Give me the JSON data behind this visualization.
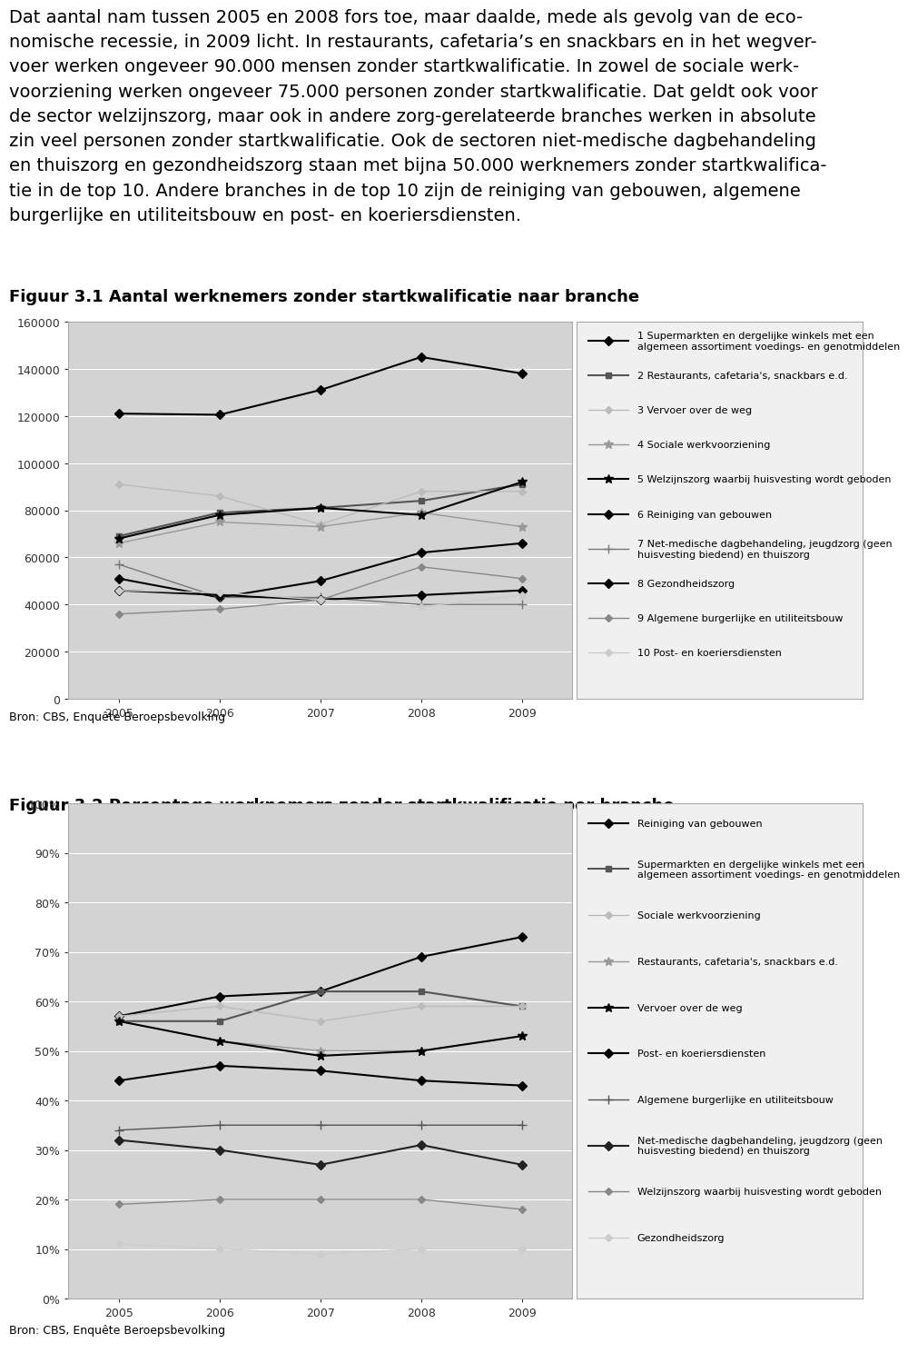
{
  "text_lines": [
    "Dat aantal nam tussen 2005 en 2008 fors toe, maar daalde, mede als gevolg van de eco-",
    "nomische recessie, in 2009 licht. In restaurants, cafetaria’s en snackbars en in het wegver-",
    "voer werken ongeveer 90.000 mensen zonder startkwalificatie. In zowel de sociale werk-",
    "voorziening werken ongeveer 75.000 personen zonder startkwalificatie. Dat geldt ook voor",
    "de sector welzijnszorg, maar ook in andere zorg-gerelateerde branches werken in absolute",
    "zin veel personen zonder startkwalificatie. Ook de sectoren niet-medische dagbehandeling",
    "en thuiszorg en gezondheidszorg staan met bijna 50.000 werknemers zonder startkwalifica-",
    "tie in de top 10. Andere branches in de top 10 zijn de reiniging van gebouwen, algemene",
    "burgerlijke en utiliteitsbouw en post- en koeriersdiensten."
  ],
  "fig1_title": "Figuur 3.1 Aantal werknemers zonder startkwalificatie naar branche",
  "fig2_title": "Figuur 3.2 Percentage werknemers zonder startkwalificatie per branche",
  "source_text": "Bron: CBS, Enquête Beroepsbevolking",
  "years": [
    2005,
    2006,
    2007,
    2008,
    2009
  ],
  "fig1_series": [
    {
      "label": "1 Supermarkten en dergelijke winkels met een\nalgemeen assortiment voedings- en genotmiddelen",
      "color": "#000000",
      "marker": "D",
      "marker_size": 5,
      "linestyle": "-",
      "linewidth": 1.5,
      "values": [
        121000,
        120500,
        131000,
        145000,
        138000
      ]
    },
    {
      "label": "2 Restaurants, cafetaria's, snackbars e.d.",
      "color": "#555555",
      "marker": "s",
      "marker_size": 5,
      "linestyle": "-",
      "linewidth": 1.5,
      "values": [
        69000,
        79000,
        81000,
        84000,
        91000
      ]
    },
    {
      "label": "3 Vervoer over de weg",
      "color": "#bbbbbb",
      "marker": "D",
      "marker_size": 4,
      "linestyle": "-",
      "linewidth": 1.0,
      "values": [
        91000,
        86000,
        74000,
        88000,
        88000
      ]
    },
    {
      "label": "4 Sociale werkvoorziening",
      "color": "#999999",
      "marker": "*",
      "marker_size": 7,
      "linestyle": "-",
      "linewidth": 1.0,
      "values": [
        66000,
        75000,
        73000,
        79000,
        73000
      ]
    },
    {
      "label": "5 Welzijnszorg waarbij huisvesting wordt geboden",
      "color": "#000000",
      "marker": "*",
      "marker_size": 7,
      "linestyle": "-",
      "linewidth": 1.5,
      "values": [
        68000,
        78000,
        81000,
        78000,
        92000
      ]
    },
    {
      "label": "6 Reiniging van gebouwen",
      "color": "#000000",
      "marker": "D",
      "marker_size": 5,
      "linestyle": "-",
      "linewidth": 1.5,
      "values": [
        51000,
        43000,
        50000,
        62000,
        66000
      ]
    },
    {
      "label": "7 Net-medische dagbehandeling, jeugdzorg (geen\nhuisvesting biedend) en thuiszorg",
      "color": "#777777",
      "marker": "+",
      "marker_size": 7,
      "linestyle": "-",
      "linewidth": 1.0,
      "values": [
        57000,
        43000,
        43000,
        40000,
        40000
      ]
    },
    {
      "label": "8 Gezondheidszorg",
      "color": "#000000",
      "marker": "D",
      "marker_size": 5,
      "linestyle": "-",
      "linewidth": 1.5,
      "values": [
        46000,
        44000,
        42000,
        44000,
        46000
      ]
    },
    {
      "label": "9 Algemene burgerlijke en utiliteitsbouw",
      "color": "#888888",
      "marker": "D",
      "marker_size": 4,
      "linestyle": "-",
      "linewidth": 1.0,
      "values": [
        36000,
        38000,
        42000,
        56000,
        51000
      ]
    },
    {
      "label": "10 Post- en koeriersdiensten",
      "color": "#cccccc",
      "marker": "D",
      "marker_size": 4,
      "linestyle": "-",
      "linewidth": 1.0,
      "values": [
        46000,
        45000,
        42000,
        39000,
        44000
      ]
    }
  ],
  "fig2_series": [
    {
      "label": "Reiniging van gebouwen",
      "color": "#000000",
      "marker": "D",
      "marker_size": 5,
      "linestyle": "-",
      "linewidth": 1.5,
      "values": [
        0.57,
        0.61,
        0.62,
        0.69,
        0.73
      ]
    },
    {
      "label": "Supermarkten en dergelijke winkels met een\nalgemeen assortiment voedings- en genotmiddelen",
      "color": "#555555",
      "marker": "s",
      "marker_size": 5,
      "linestyle": "-",
      "linewidth": 1.5,
      "values": [
        0.56,
        0.56,
        0.62,
        0.62,
        0.59
      ]
    },
    {
      "label": "Sociale werkvoorziening",
      "color": "#bbbbbb",
      "marker": "D",
      "marker_size": 4,
      "linestyle": "-",
      "linewidth": 1.0,
      "values": [
        0.57,
        0.59,
        0.56,
        0.59,
        0.59
      ]
    },
    {
      "label": "Restaurants, cafetaria's, snackbars e.d.",
      "color": "#999999",
      "marker": "*",
      "marker_size": 7,
      "linestyle": "-",
      "linewidth": 1.0,
      "values": [
        0.56,
        0.52,
        0.5,
        0.5,
        0.53
      ]
    },
    {
      "label": "Vervoer over de weg",
      "color": "#000000",
      "marker": "*",
      "marker_size": 7,
      "linestyle": "-",
      "linewidth": 1.5,
      "values": [
        0.56,
        0.52,
        0.49,
        0.5,
        0.53
      ]
    },
    {
      "label": "Post- en koeriersdiensten",
      "color": "#000000",
      "marker": "D",
      "marker_size": 5,
      "linestyle": "-",
      "linewidth": 1.5,
      "values": [
        0.44,
        0.47,
        0.46,
        0.44,
        0.43
      ]
    },
    {
      "label": "Algemene burgerlijke en utiliteitsbouw",
      "color": "#555555",
      "marker": "+",
      "marker_size": 7,
      "linestyle": "-",
      "linewidth": 1.0,
      "values": [
        0.34,
        0.35,
        0.35,
        0.35,
        0.35
      ]
    },
    {
      "label": "Net-medische dagbehandeling, jeugdzorg (geen\nhuisvesting biedend) en thuiszorg",
      "color": "#222222",
      "marker": "D",
      "marker_size": 5,
      "linestyle": "-",
      "linewidth": 1.5,
      "values": [
        0.32,
        0.3,
        0.27,
        0.31,
        0.27
      ]
    },
    {
      "label": "Welzijnszorg waarbij huisvesting wordt geboden",
      "color": "#888888",
      "marker": "D",
      "marker_size": 4,
      "linestyle": "-",
      "linewidth": 1.0,
      "values": [
        0.19,
        0.2,
        0.2,
        0.2,
        0.18
      ]
    },
    {
      "label": "Gezondheidszorg",
      "color": "#cccccc",
      "marker": "D",
      "marker_size": 4,
      "linestyle": "-",
      "linewidth": 1.0,
      "values": [
        0.11,
        0.1,
        0.09,
        0.1,
        0.1
      ]
    }
  ],
  "plot_bg_color": "#d3d3d3",
  "fig_bg_color": "#ffffff",
  "legend_bg_color": "#f0f0f0",
  "font_size_title": 13,
  "font_size_axis": 9,
  "font_size_legend": 8,
  "font_size_text": 14,
  "font_size_source": 9
}
